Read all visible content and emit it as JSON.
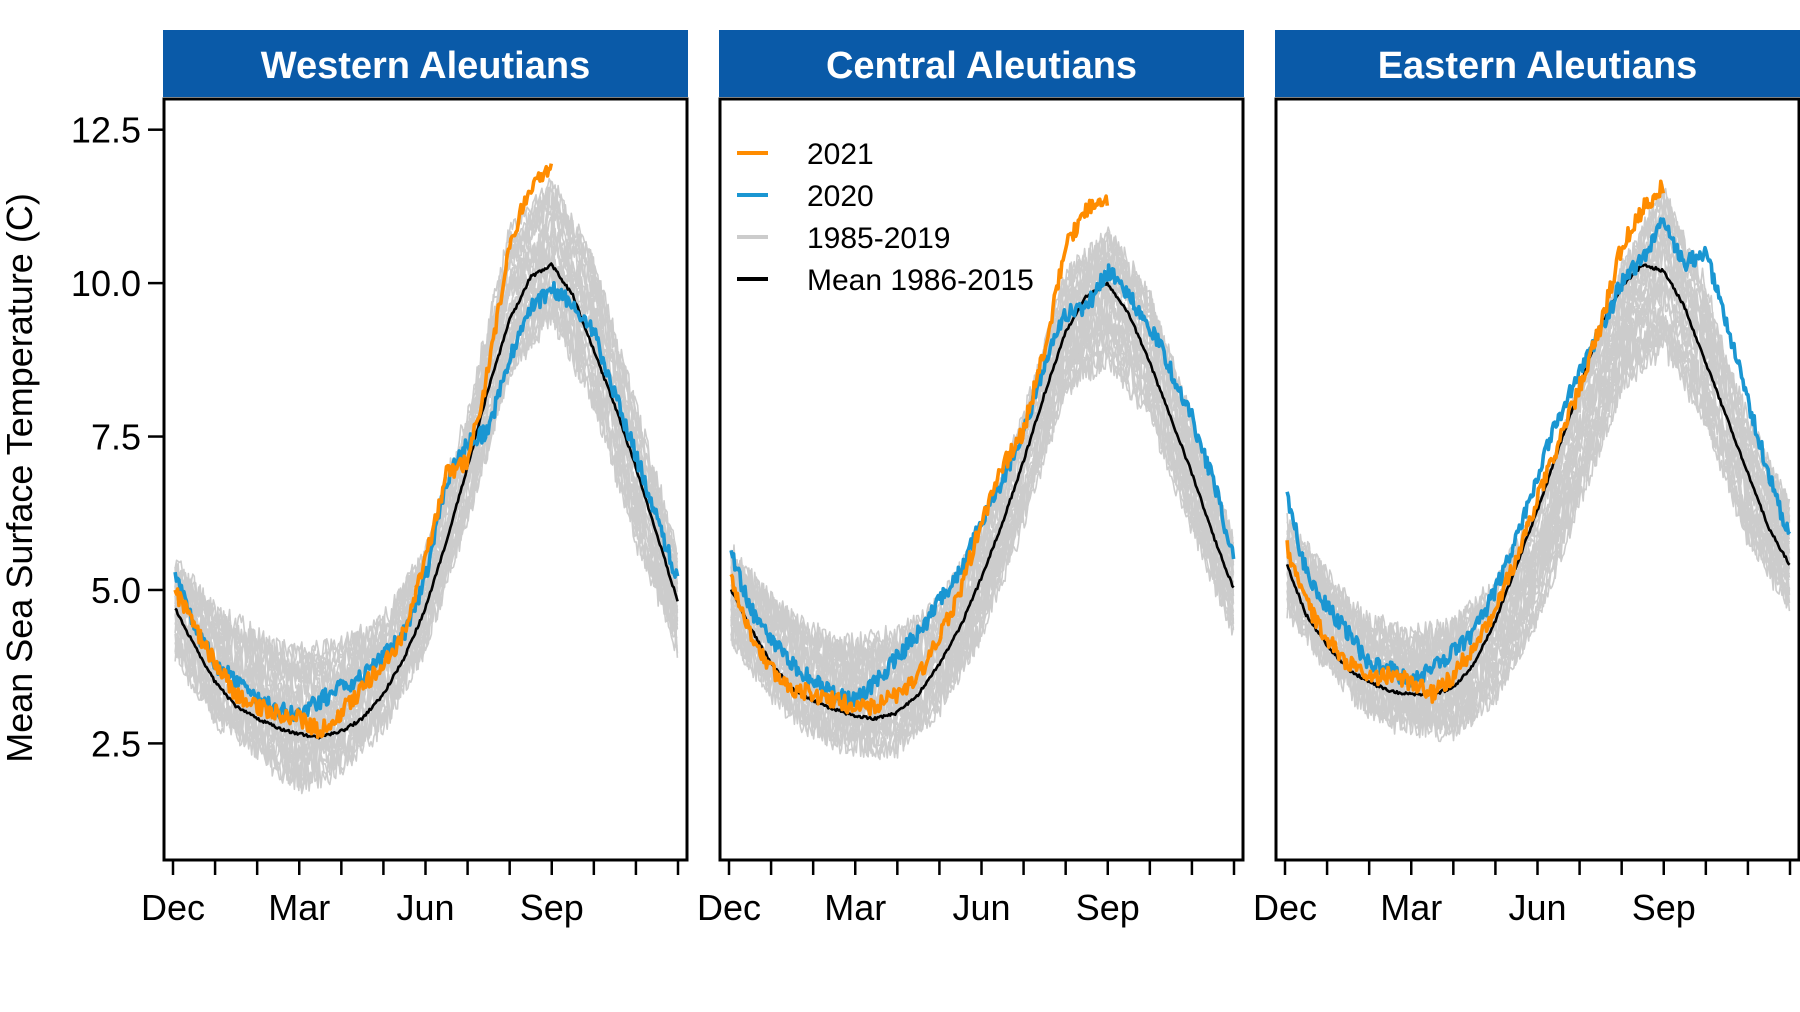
{
  "colors": {
    "strip": "#0a5aa8",
    "y2021": "#ff8c00",
    "y2020": "#1a96d2",
    "historic": "#cccccc",
    "mean": "#000000"
  },
  "chart_data": {
    "type": "line",
    "ylabel": "Mean Sea Surface Temperature (C)",
    "ylim": [
      0.6,
      13.0
    ],
    "yticks": [
      "2.5",
      "5.0",
      "7.5",
      "10.0",
      "12.5"
    ],
    "xlim": [
      0,
      12
    ],
    "xtick_labels": [
      "Dec",
      "Mar",
      "Jun",
      "Sep"
    ],
    "xtick_label_positions": [
      0,
      3,
      6,
      9
    ],
    "minor_ticks_per_month": true,
    "grid": false,
    "legend": {
      "placement": "top-left of Central Aleutians panel",
      "entries": [
        {
          "label": "2021",
          "color_key": "y2021"
        },
        {
          "label": "2020",
          "color_key": "y2020"
        },
        {
          "label": "1985-2019",
          "color_key": "historic"
        },
        {
          "label": "Mean 1986-2015",
          "color_key": "mean"
        }
      ]
    },
    "panels": [
      {
        "title": "Western Aleutians",
        "series": [
          {
            "name": "Mean 1986-2015",
            "color_key": "mean",
            "x": [
              0.05,
              0.5,
              1,
              1.5,
              2,
              2.5,
              3,
              3.5,
              4,
              4.5,
              5,
              5.5,
              6,
              6.5,
              7,
              7.5,
              8,
              8.5,
              9,
              9.5,
              10,
              10.5,
              11,
              11.5,
              12
            ],
            "y": [
              4.7,
              4.1,
              3.5,
              3.1,
              2.9,
              2.75,
              2.65,
              2.6,
              2.7,
              2.9,
              3.3,
              3.9,
              4.7,
              5.8,
              7.0,
              8.3,
              9.4,
              10.1,
              10.3,
              9.8,
              8.9,
              8.0,
              7.0,
              5.9,
              4.8
            ]
          },
          {
            "name": "2020",
            "color_key": "y2020",
            "x": [
              0.05,
              0.5,
              1,
              1.5,
              2,
              2.5,
              3,
              3.5,
              4,
              4.5,
              5,
              5.5,
              6,
              6.5,
              7,
              7.5,
              8,
              8.5,
              9,
              9.5,
              10,
              10.5,
              11,
              11.5,
              12
            ],
            "y": [
              5.3,
              4.4,
              3.8,
              3.5,
              3.2,
              3.05,
              3.0,
              3.2,
              3.4,
              3.6,
              3.9,
              4.3,
              5.2,
              6.8,
              7.4,
              7.6,
              8.8,
              9.6,
              9.9,
              9.7,
              9.2,
              8.2,
              7.2,
              6.2,
              5.1
            ]
          },
          {
            "name": "2021",
            "color_key": "y2021",
            "x": [
              0.05,
              0.5,
              1,
              1.5,
              2,
              2.5,
              3,
              3.5,
              4,
              4.5,
              5,
              5.5,
              6,
              6.5,
              7,
              7.5,
              8,
              8.5,
              9
            ],
            "y": [
              5.0,
              4.4,
              3.8,
              3.3,
              3.1,
              3.0,
              2.9,
              2.7,
              3.0,
              3.4,
              3.8,
              4.3,
              5.5,
              6.9,
              7.1,
              8.6,
              10.6,
              11.6,
              11.9
            ]
          }
        ],
        "historic_band": {
          "x": [
            0.05,
            1,
            2,
            3,
            4,
            5,
            6,
            7,
            8,
            9,
            10,
            11,
            12
          ],
          "low": [
            3.5,
            2.4,
            1.8,
            1.2,
            1.5,
            2.3,
            3.7,
            5.6,
            7.8,
            8.8,
            7.4,
            5.2,
            3.6
          ],
          "high": [
            5.9,
            5.2,
            4.8,
            4.6,
            4.7,
            5.0,
            6.0,
            8.4,
            11.5,
            12.3,
            11.0,
            8.6,
            6.0
          ]
        }
      },
      {
        "title": "Central Aleutians",
        "series": [
          {
            "name": "Mean 1986-2015",
            "color_key": "mean",
            "x": [
              0.05,
              0.5,
              1,
              1.5,
              2,
              2.5,
              3,
              3.5,
              4,
              4.5,
              5,
              5.5,
              6,
              6.5,
              7,
              7.5,
              8,
              8.5,
              9,
              9.5,
              10,
              10.5,
              11,
              11.5,
              12
            ],
            "y": [
              5.0,
              4.4,
              3.8,
              3.4,
              3.2,
              3.05,
              2.95,
              2.9,
              3.0,
              3.3,
              3.8,
              4.4,
              5.2,
              6.1,
              7.1,
              8.2,
              9.2,
              9.8,
              10.0,
              9.5,
              8.7,
              7.8,
              6.9,
              5.9,
              5.0
            ]
          },
          {
            "name": "2020",
            "color_key": "y2020",
            "x": [
              0.05,
              0.5,
              1,
              1.5,
              2,
              2.5,
              3,
              3.5,
              4,
              4.5,
              5,
              5.5,
              6,
              6.5,
              7,
              7.5,
              8,
              8.5,
              9,
              9.5,
              10,
              10.5,
              11,
              11.5,
              12
            ],
            "y": [
              5.6,
              4.7,
              4.2,
              3.8,
              3.5,
              3.3,
              3.2,
              3.5,
              3.9,
              4.3,
              4.8,
              5.3,
              6.1,
              6.8,
              7.6,
              8.7,
              9.5,
              9.6,
              10.2,
              9.8,
              9.3,
              8.6,
              7.8,
              6.8,
              5.5
            ]
          },
          {
            "name": "2021",
            "color_key": "y2021",
            "x": [
              0.05,
              0.5,
              1,
              1.5,
              2,
              2.5,
              3,
              3.5,
              4,
              4.5,
              5,
              5.5,
              6,
              6.5,
              7,
              7.5,
              8,
              8.5,
              9
            ],
            "y": [
              5.2,
              4.3,
              3.7,
              3.4,
              3.3,
              3.2,
              3.1,
              3.1,
              3.3,
              3.6,
              4.2,
              5.0,
              6.1,
              7.0,
              7.6,
              8.9,
              10.6,
              11.2,
              11.3
            ]
          }
        ],
        "historic_band": {
          "x": [
            0.05,
            1,
            2,
            3,
            4,
            5,
            6,
            7,
            8,
            9,
            10,
            11,
            12
          ],
          "low": [
            3.9,
            2.9,
            2.2,
            1.9,
            1.9,
            2.6,
            3.9,
            5.6,
            7.8,
            8.2,
            7.3,
            5.5,
            3.9
          ],
          "high": [
            6.0,
            5.3,
            4.8,
            4.6,
            4.8,
            5.2,
            6.3,
            8.4,
            10.6,
            11.4,
            10.4,
            8.2,
            6.2
          ]
        }
      },
      {
        "title": "Eastern Aleutians",
        "series": [
          {
            "name": "Mean 1986-2015",
            "color_key": "mean",
            "x": [
              0.05,
              0.5,
              1,
              1.5,
              2,
              2.5,
              3,
              3.5,
              4,
              4.5,
              5,
              5.5,
              6,
              6.5,
              7,
              7.5,
              8,
              8.5,
              9,
              9.5,
              10,
              10.5,
              11,
              11.5,
              12
            ],
            "y": [
              5.4,
              4.6,
              4.1,
              3.7,
              3.5,
              3.35,
              3.3,
              3.3,
              3.4,
              3.8,
              4.5,
              5.4,
              6.3,
              7.3,
              8.3,
              9.3,
              9.95,
              10.3,
              10.2,
              9.6,
              8.7,
              7.8,
              6.9,
              6.0,
              5.4
            ]
          },
          {
            "name": "2020",
            "color_key": "y2020",
            "x": [
              0.05,
              0.5,
              1,
              1.5,
              2,
              2.5,
              3,
              3.5,
              4,
              4.5,
              5,
              5.5,
              6,
              6.5,
              7,
              7.5,
              8,
              8.5,
              9,
              9.5,
              10,
              10.5,
              11,
              11.5,
              12
            ],
            "y": [
              6.5,
              5.3,
              4.7,
              4.3,
              3.8,
              3.7,
              3.5,
              3.7,
              4.0,
              4.3,
              5.0,
              5.8,
              6.9,
              7.8,
              8.6,
              9.2,
              10.0,
              10.4,
              11.0,
              10.3,
              10.5,
              9.3,
              8.1,
              6.9,
              5.8
            ]
          },
          {
            "name": "2021",
            "color_key": "y2021",
            "x": [
              0.05,
              0.5,
              1,
              1.5,
              2,
              2.5,
              3,
              3.5,
              4,
              4.5,
              5,
              5.5,
              6,
              6.5,
              7,
              7.5,
              8,
              8.5,
              9
            ],
            "y": [
              5.7,
              4.8,
              4.2,
              3.8,
              3.6,
              3.6,
              3.5,
              3.3,
              3.6,
              4.1,
              4.7,
              5.5,
              6.5,
              7.4,
              8.3,
              9.3,
              10.6,
              11.2,
              11.6
            ]
          }
        ],
        "historic_band": {
          "x": [
            0.05,
            1,
            2,
            3,
            4,
            5,
            6,
            7,
            8,
            9,
            10,
            11,
            12
          ],
          "low": [
            4.3,
            3.4,
            2.6,
            2.3,
            2.2,
            2.7,
            4.1,
            5.9,
            7.8,
            8.2,
            7.0,
            5.3,
            4.3
          ],
          "high": [
            6.5,
            5.6,
            4.9,
            4.7,
            4.9,
            5.6,
            6.8,
            8.9,
            10.8,
            12.3,
            10.6,
            8.3,
            6.8
          ]
        }
      }
    ]
  }
}
